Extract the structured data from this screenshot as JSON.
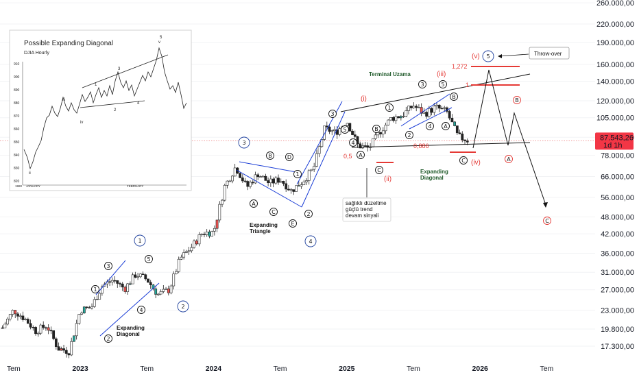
{
  "chart_data": {
    "type": "candlestick",
    "y_scale": "log",
    "y_ticks": [
      "260.000,00",
      "220.000,00",
      "190.000,00",
      "160.000,00",
      "140.000,00",
      "120.000,00",
      "105.000,00",
      "90.000,00",
      "78.000,00",
      "66.000,00",
      "56.000,00",
      "48.000,00",
      "42.000,00",
      "36.000,00",
      "31.000,00",
      "27.000,00",
      "23.000,00",
      "19.800,00",
      "17.300,00"
    ],
    "x_ticks": [
      {
        "label": "Tem",
        "bold": false
      },
      {
        "label": "2023",
        "bold": true
      },
      {
        "label": "Tem",
        "bold": false
      },
      {
        "label": "2024",
        "bold": true
      },
      {
        "label": "Tem",
        "bold": false
      },
      {
        "label": "2025",
        "bold": true
      },
      {
        "label": "Tem",
        "bold": false
      },
      {
        "label": "2026",
        "bold": true
      },
      {
        "label": "Tem",
        "bold": false
      }
    ],
    "current_price": "87.543,26",
    "current_interval": "1d 1h",
    "colors": {
      "up": "#26a69a",
      "down": "#ef5350",
      "candle": "#222222",
      "blue_line": "#1a3dd6",
      "red": "#e53935",
      "price_tag": "#f23645",
      "dotted": "#e88"
    },
    "price_series": [
      {
        "date": "2022-06",
        "close": 20000
      },
      {
        "date": "2022-07",
        "close": 23000
      },
      {
        "date": "2022-08",
        "close": 21500
      },
      {
        "date": "2022-09",
        "close": 19500
      },
      {
        "date": "2022-10",
        "close": 20400
      },
      {
        "date": "2022-11",
        "close": 17000
      },
      {
        "date": "2022-12",
        "close": 16600
      },
      {
        "date": "2023-01",
        "close": 23000
      },
      {
        "date": "2023-02",
        "close": 23500
      },
      {
        "date": "2023-03",
        "close": 28000
      },
      {
        "date": "2023-04",
        "close": 29200
      },
      {
        "date": "2023-05",
        "close": 27200
      },
      {
        "date": "2023-06",
        "close": 30500
      },
      {
        "date": "2023-07",
        "close": 29300
      },
      {
        "date": "2023-08",
        "close": 26000
      },
      {
        "date": "2023-09",
        "close": 27000
      },
      {
        "date": "2023-10",
        "close": 34500
      },
      {
        "date": "2023-11",
        "close": 37700
      },
      {
        "date": "2023-12",
        "close": 42300
      },
      {
        "date": "2024-01",
        "close": 42600
      },
      {
        "date": "2024-02",
        "close": 61000
      },
      {
        "date": "2024-03",
        "close": 71300
      },
      {
        "date": "2024-04",
        "close": 60600
      },
      {
        "date": "2024-05",
        "close": 67500
      },
      {
        "date": "2024-06",
        "close": 62700
      },
      {
        "date": "2024-07",
        "close": 64600
      },
      {
        "date": "2024-08",
        "close": 59000
      },
      {
        "date": "2024-09",
        "close": 63300
      },
      {
        "date": "2024-10",
        "close": 70200
      },
      {
        "date": "2024-11",
        "close": 96400
      },
      {
        "date": "2024-12",
        "close": 93400
      },
      {
        "date": "2025-01",
        "close": 102400
      },
      {
        "date": "2025-02",
        "close": 84300
      },
      {
        "date": "2025-03",
        "close": 82500
      },
      {
        "date": "2025-04",
        "close": 94200
      },
      {
        "date": "2025-05",
        "close": 104600
      },
      {
        "date": "2025-06",
        "close": 107100
      },
      {
        "date": "2025-07",
        "close": 115700
      },
      {
        "date": "2025-08",
        "close": 108200
      },
      {
        "date": "2025-09",
        "close": 114000
      },
      {
        "date": "2025-10",
        "close": 110000
      },
      {
        "date": "2025-11",
        "close": 90500
      },
      {
        "date": "2025-12",
        "close": 87543
      }
    ]
  },
  "annotations": {
    "wave_1": "1",
    "wave_2": "2",
    "wave_3": "3",
    "wave_4": "4",
    "wave_5": "5",
    "sub_1": "1",
    "sub_2": "2",
    "sub_3": "3",
    "sub_4": "4",
    "sub_5": "5",
    "sub_a": "A",
    "sub_b": "B",
    "sub_c": "C",
    "sub_d": "D",
    "sub_e": "E",
    "wave_i": "(i)",
    "wave_ii": "(ii)",
    "wave_iii": "(iii)",
    "wave_iv": "(iv)",
    "wave_v": "(v)",
    "expanding_diagonal": "Expanding\nDiagonal",
    "expanding_triangle": "Expanding\nTriangle",
    "terminal_uzama": "Terminal Uzama",
    "callout_text": "sağlıklı düzeltme\ngüçlü trend\ndevam sinyali",
    "fib_05": "0,5",
    "fib_0886": "0,886",
    "fib_1272": "1,272",
    "fib_1": "1",
    "throw_over": "Throw-over"
  },
  "inset": {
    "title": "Possible Expanding Diagonal",
    "subtitle": "DJIA Hourly",
    "y_ticks": [
      "910",
      "900",
      "890",
      "880",
      "870",
      "860",
      "850",
      "840",
      "830",
      "820"
    ],
    "x_ticks": [
      "1980",
      "JANUARY",
      "FEBRUARY"
    ],
    "labels": [
      "ii",
      "iii",
      "iv",
      "v",
      "1",
      "2",
      "3",
      "4",
      "5"
    ]
  }
}
